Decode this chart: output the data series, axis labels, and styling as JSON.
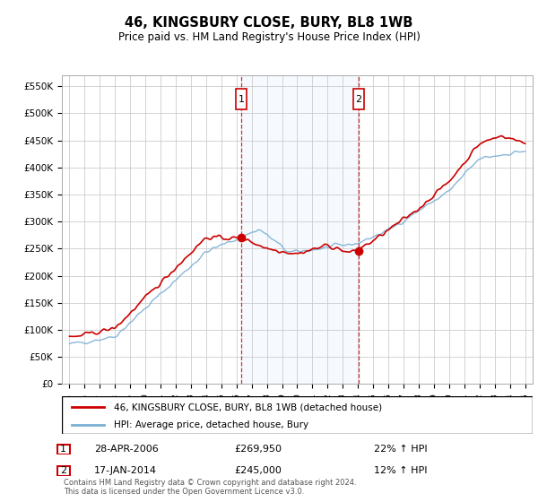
{
  "title": "46, KINGSBURY CLOSE, BURY, BL8 1WB",
  "subtitle": "Price paid vs. HM Land Registry's House Price Index (HPI)",
  "legend_line1": "46, KINGSBURY CLOSE, BURY, BL8 1WB (detached house)",
  "legend_line2": "HPI: Average price, detached house, Bury",
  "transaction1_date": "28-APR-2006",
  "transaction1_price": "£269,950",
  "transaction1_hpi": "22% ↑ HPI",
  "transaction2_date": "17-JAN-2014",
  "transaction2_price": "£245,000",
  "transaction2_hpi": "12% ↑ HPI",
  "footer": "Contains HM Land Registry data © Crown copyright and database right 2024.\nThis data is licensed under the Open Government Licence v3.0.",
  "price_color": "#cc0000",
  "hpi_color": "#7ab0d4",
  "shade_color": "#ddeeff",
  "ylim_min": 0,
  "ylim_max": 570000,
  "yticks": [
    0,
    50000,
    100000,
    150000,
    200000,
    250000,
    300000,
    350000,
    400000,
    450000,
    500000,
    550000
  ],
  "transaction1_year": 2006.32,
  "transaction2_year": 2014.05,
  "t1_price_val": 269950,
  "t2_price_val": 245000,
  "plot_bg_color": "#ffffff",
  "grid_color": "#cccccc",
  "marker_box_color": "#cc0000"
}
